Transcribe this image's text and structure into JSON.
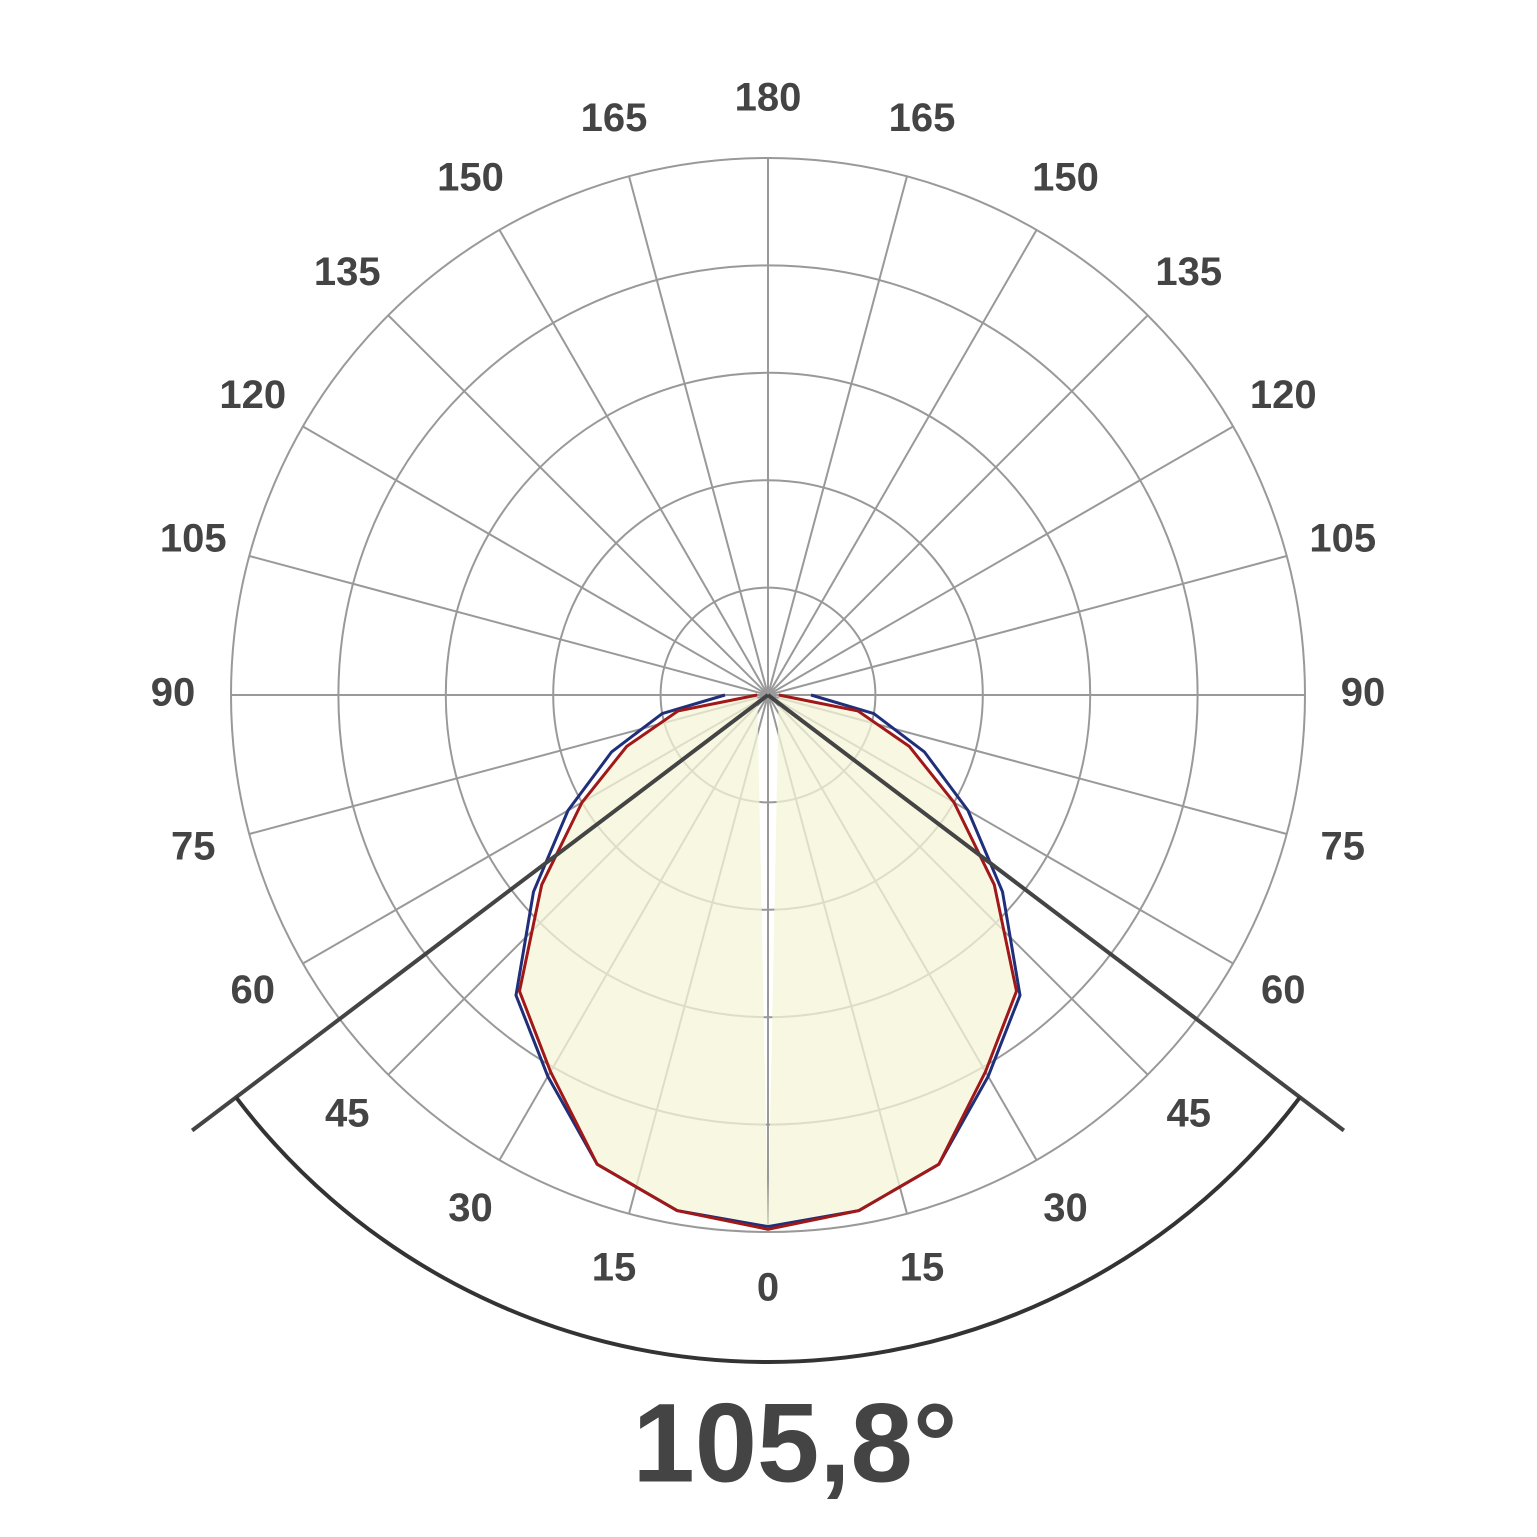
{
  "chart_data": {
    "type": "polar",
    "angles": [
      0,
      15,
      30,
      45,
      60,
      75,
      90,
      105,
      120,
      135,
      150,
      165,
      180
    ],
    "x": [
      0,
      10,
      20,
      30,
      40,
      50,
      60,
      70,
      80,
      90
    ],
    "rlim": [
      0,
      1
    ],
    "rticks": [
      0.2,
      0.4,
      0.6,
      0.8,
      1
    ],
    "grid": true,
    "fill_color": "#f5f5d8",
    "series": [
      {
        "color": "#1f2f7a",
        "values": [
          0.99,
          0.975,
          0.93,
          0.82,
          0.73,
          0.57,
          0.43,
          0.31,
          0.2,
          0.08
        ]
      },
      {
        "color": "#a01818",
        "values": [
          0.995,
          0.975,
          0.93,
          0.81,
          0.72,
          0.55,
          0.4,
          0.28,
          0.17,
          0.02
        ]
      }
    ],
    "beam_angle": {
      "value": 105.8,
      "label": "105,8°"
    }
  }
}
